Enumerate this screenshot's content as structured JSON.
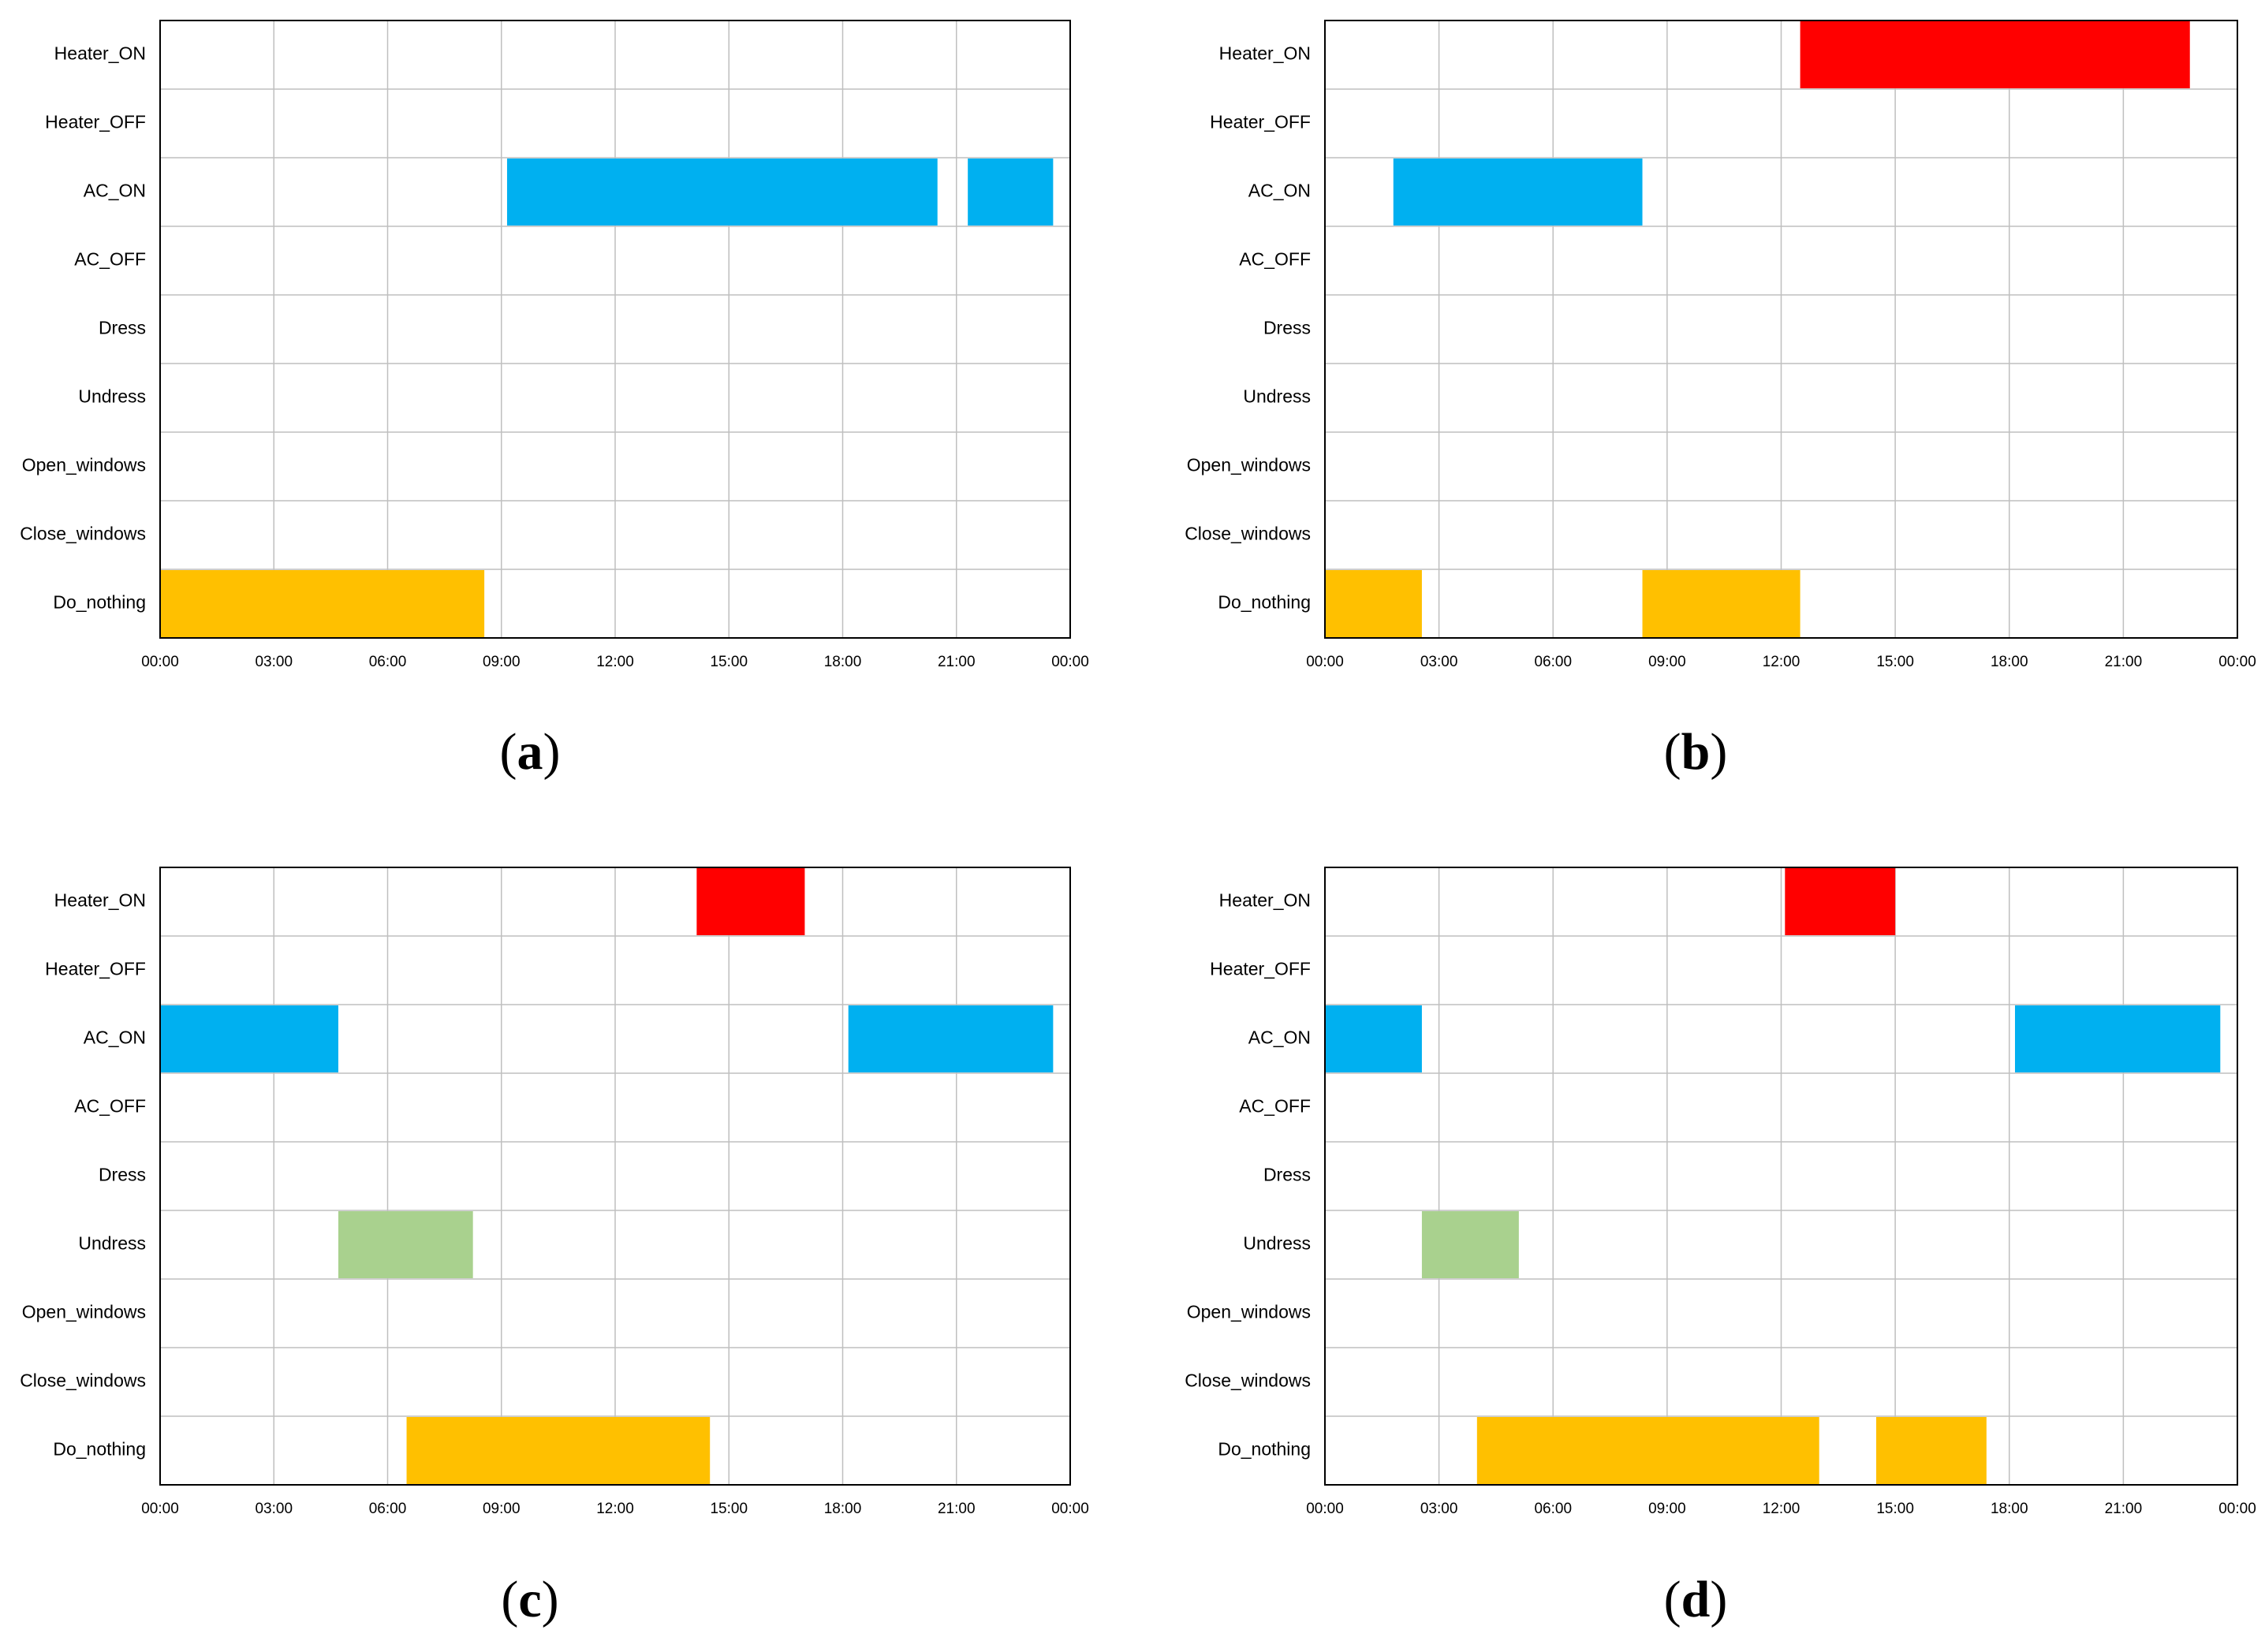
{
  "chart_data": [
    {
      "type": "timeline",
      "caption": "(a)",
      "caption_letter": "a",
      "categories": [
        "Heater_ON",
        "Heater_OFF",
        "AC_ON",
        "AC_OFF",
        "Dress",
        "Undress",
        "Open_windows",
        "Close_windows",
        "Do_nothing"
      ],
      "x_ticks": [
        "00:00",
        "03:00",
        "06:00",
        "09:00",
        "12:00",
        "15:00",
        "18:00",
        "21:00",
        "00:00"
      ],
      "x_range_hours": [
        0,
        24
      ],
      "intervals": [
        {
          "category": "AC_ON",
          "start": 9.15,
          "end": 20.5
        },
        {
          "category": "AC_ON",
          "start": 21.3,
          "end": 23.55
        },
        {
          "category": "Do_nothing",
          "start": 0.0,
          "end": 8.55
        }
      ]
    },
    {
      "type": "timeline",
      "caption": "(b)",
      "caption_letter": "b",
      "categories": [
        "Heater_ON",
        "Heater_OFF",
        "AC_ON",
        "AC_OFF",
        "Dress",
        "Undress",
        "Open_windows",
        "Close_windows",
        "Do_nothing"
      ],
      "x_ticks": [
        "00:00",
        "03:00",
        "06:00",
        "09:00",
        "12:00",
        "15:00",
        "18:00",
        "21:00",
        "00:00"
      ],
      "x_range_hours": [
        0,
        24
      ],
      "intervals": [
        {
          "category": "Heater_ON",
          "start": 12.5,
          "end": 22.75
        },
        {
          "category": "AC_ON",
          "start": 1.8,
          "end": 8.35
        },
        {
          "category": "Do_nothing",
          "start": 0.0,
          "end": 2.55
        },
        {
          "category": "Do_nothing",
          "start": 8.35,
          "end": 12.5
        }
      ]
    },
    {
      "type": "timeline",
      "caption": "(c)",
      "caption_letter": "c",
      "categories": [
        "Heater_ON",
        "Heater_OFF",
        "AC_ON",
        "AC_OFF",
        "Dress",
        "Undress",
        "Open_windows",
        "Close_windows",
        "Do_nothing"
      ],
      "x_ticks": [
        "00:00",
        "03:00",
        "06:00",
        "09:00",
        "12:00",
        "15:00",
        "18:00",
        "21:00",
        "00:00"
      ],
      "x_range_hours": [
        0,
        24
      ],
      "intervals": [
        {
          "category": "Heater_ON",
          "start": 14.15,
          "end": 17.0
        },
        {
          "category": "AC_ON",
          "start": 0.0,
          "end": 4.7
        },
        {
          "category": "AC_ON",
          "start": 18.15,
          "end": 23.55
        },
        {
          "category": "Undress",
          "start": 4.7,
          "end": 8.25
        },
        {
          "category": "Do_nothing",
          "start": 6.5,
          "end": 14.5
        }
      ]
    },
    {
      "type": "timeline",
      "caption": "(d)",
      "caption_letter": "d",
      "categories": [
        "Heater_ON",
        "Heater_OFF",
        "AC_ON",
        "AC_OFF",
        "Dress",
        "Undress",
        "Open_windows",
        "Close_windows",
        "Do_nothing"
      ],
      "x_ticks": [
        "00:00",
        "03:00",
        "06:00",
        "09:00",
        "12:00",
        "15:00",
        "18:00",
        "21:00",
        "00:00"
      ],
      "x_range_hours": [
        0,
        24
      ],
      "intervals": [
        {
          "category": "Heater_ON",
          "start": 12.1,
          "end": 15.0
        },
        {
          "category": "AC_ON",
          "start": 0.0,
          "end": 2.55
        },
        {
          "category": "AC_ON",
          "start": 18.15,
          "end": 23.55
        },
        {
          "category": "Undress",
          "start": 2.55,
          "end": 5.1
        },
        {
          "category": "Do_nothing",
          "start": 4.0,
          "end": 13.0
        },
        {
          "category": "Do_nothing",
          "start": 14.5,
          "end": 17.4
        }
      ]
    }
  ],
  "colors": {
    "Heater_ON": "#ff0000",
    "AC_ON": "#00b0f0",
    "Undress": "#a9d18e",
    "Do_nothing": "#ffc000",
    "grid": "#bfbfbf",
    "frame": "#000000"
  }
}
